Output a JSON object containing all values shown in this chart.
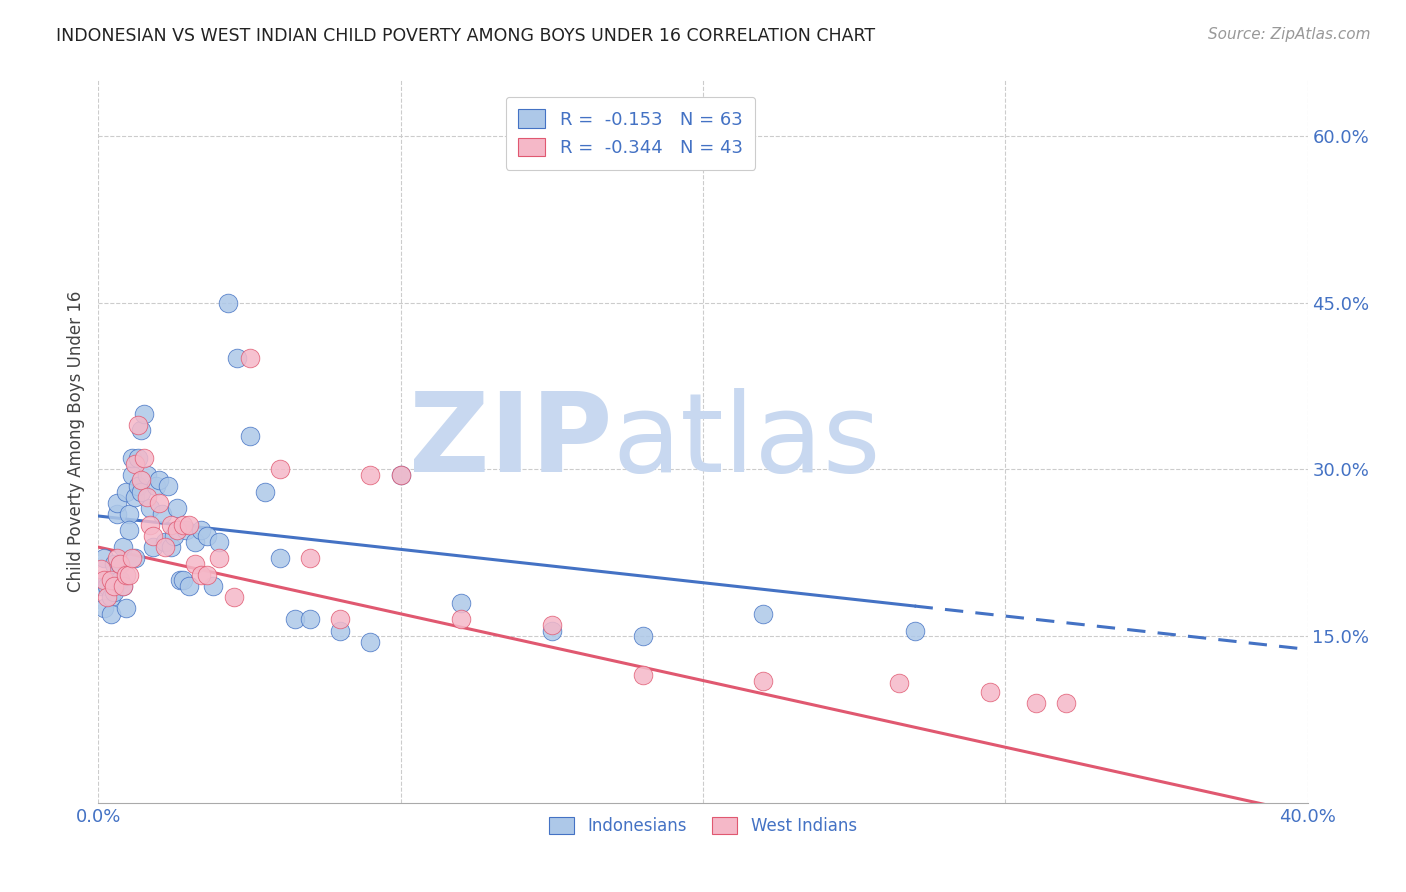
{
  "title": "INDONESIAN VS WEST INDIAN CHILD POVERTY AMONG BOYS UNDER 16 CORRELATION CHART",
  "source": "Source: ZipAtlas.com",
  "xlabel": "",
  "ylabel": "Child Poverty Among Boys Under 16",
  "xlim": [
    0.0,
    0.4
  ],
  "ylim": [
    0.0,
    0.65
  ],
  "xticks": [
    0.0,
    0.1,
    0.2,
    0.3,
    0.4
  ],
  "xticklabels": [
    "0.0%",
    "",
    "",
    "",
    "40.0%"
  ],
  "yticks_right": [
    0.15,
    0.3,
    0.45,
    0.6
  ],
  "yticklabels_right": [
    "15.0%",
    "30.0%",
    "45.0%",
    "60.0%"
  ],
  "blue_R": "-0.153",
  "blue_N": "63",
  "pink_R": "-0.344",
  "pink_N": "43",
  "blue_color": "#adc8e8",
  "pink_color": "#f5b8c8",
  "blue_line_color": "#4472c4",
  "pink_line_color": "#e05870",
  "axis_color": "#4472c4",
  "watermark_zip_color": "#c8d8f0",
  "watermark_atlas_color": "#c8d8f0",
  "grid_color": "#cccccc",
  "indonesian_x": [
    0.001,
    0.002,
    0.002,
    0.003,
    0.003,
    0.004,
    0.004,
    0.005,
    0.005,
    0.006,
    0.006,
    0.007,
    0.007,
    0.008,
    0.008,
    0.009,
    0.009,
    0.01,
    0.01,
    0.011,
    0.011,
    0.012,
    0.012,
    0.013,
    0.013,
    0.014,
    0.014,
    0.015,
    0.016,
    0.017,
    0.018,
    0.019,
    0.02,
    0.021,
    0.022,
    0.023,
    0.024,
    0.025,
    0.026,
    0.027,
    0.028,
    0.029,
    0.03,
    0.032,
    0.034,
    0.036,
    0.038,
    0.04,
    0.043,
    0.046,
    0.05,
    0.055,
    0.06,
    0.065,
    0.07,
    0.08,
    0.09,
    0.1,
    0.12,
    0.15,
    0.18,
    0.22,
    0.27
  ],
  "indonesian_y": [
    0.195,
    0.22,
    0.175,
    0.2,
    0.195,
    0.185,
    0.17,
    0.19,
    0.215,
    0.26,
    0.27,
    0.2,
    0.215,
    0.195,
    0.23,
    0.175,
    0.28,
    0.26,
    0.245,
    0.295,
    0.31,
    0.275,
    0.22,
    0.285,
    0.31,
    0.335,
    0.28,
    0.35,
    0.295,
    0.265,
    0.23,
    0.285,
    0.29,
    0.26,
    0.235,
    0.285,
    0.23,
    0.24,
    0.265,
    0.2,
    0.2,
    0.245,
    0.195,
    0.235,
    0.245,
    0.24,
    0.195,
    0.235,
    0.45,
    0.4,
    0.33,
    0.28,
    0.22,
    0.165,
    0.165,
    0.155,
    0.145,
    0.295,
    0.18,
    0.155,
    0.15,
    0.17,
    0.155
  ],
  "westindian_x": [
    0.001,
    0.002,
    0.003,
    0.004,
    0.005,
    0.006,
    0.007,
    0.008,
    0.009,
    0.01,
    0.011,
    0.012,
    0.013,
    0.014,
    0.015,
    0.016,
    0.017,
    0.018,
    0.02,
    0.022,
    0.024,
    0.026,
    0.028,
    0.03,
    0.032,
    0.034,
    0.036,
    0.04,
    0.045,
    0.05,
    0.06,
    0.07,
    0.08,
    0.09,
    0.1,
    0.12,
    0.15,
    0.18,
    0.22,
    0.265,
    0.295,
    0.31,
    0.32
  ],
  "westindian_y": [
    0.21,
    0.2,
    0.185,
    0.2,
    0.195,
    0.22,
    0.215,
    0.195,
    0.205,
    0.205,
    0.22,
    0.305,
    0.34,
    0.29,
    0.31,
    0.275,
    0.25,
    0.24,
    0.27,
    0.23,
    0.25,
    0.245,
    0.25,
    0.25,
    0.215,
    0.205,
    0.205,
    0.22,
    0.185,
    0.4,
    0.3,
    0.22,
    0.165,
    0.295,
    0.295,
    0.165,
    0.16,
    0.115,
    0.11,
    0.108,
    0.1,
    0.09,
    0.09
  ],
  "blue_line_intercept": 0.258,
  "blue_line_slope": -0.3,
  "pink_line_intercept": 0.23,
  "pink_line_slope": -0.6
}
